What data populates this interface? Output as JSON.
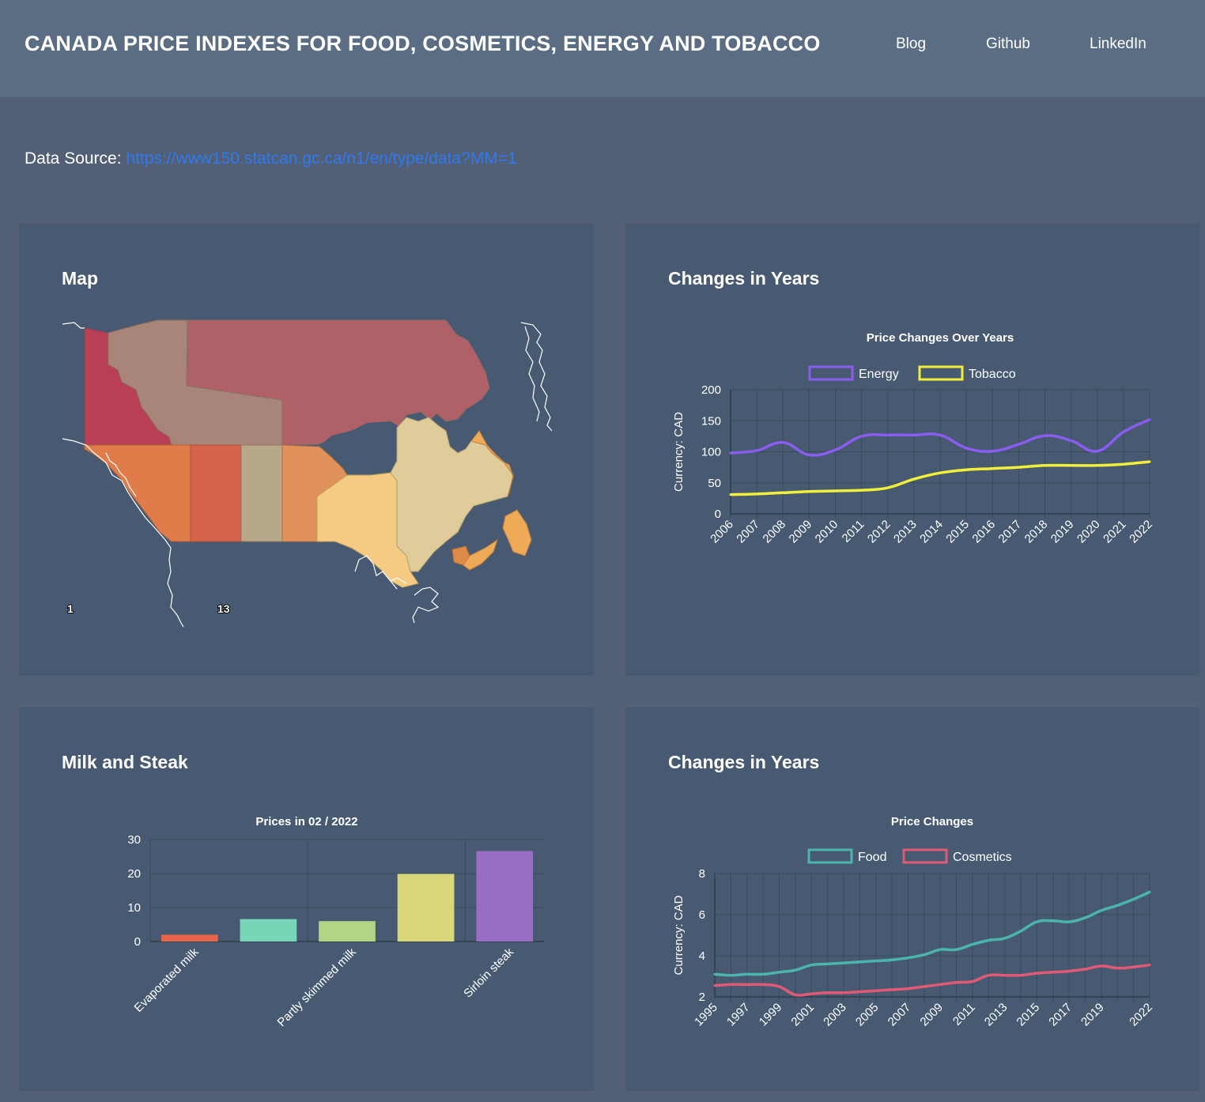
{
  "header": {
    "title": "CANADA PRICE INDEXES FOR FOOD, COSMETICS, ENERGY AND TOBACCO",
    "nav": [
      "Blog",
      "Github",
      "LinkedIn"
    ]
  },
  "source": {
    "label": "Data Source:",
    "url": "https://www150.statcan.gc.ca/n1/en/type/data?MM=1"
  },
  "colors": {
    "page_bg": "#525f75",
    "header_bg": "#5a6d83",
    "panel_bg": "#475a71",
    "link": "#2e7bf0",
    "energy": "#8a5cf0",
    "tobacco": "#f2ef3c",
    "food": "#4bb5ad",
    "cosmetics": "#e05a75"
  },
  "panels": {
    "map": {
      "title": "Map",
      "legend_min": "1",
      "legend_max": "13"
    },
    "energy_tobacco": {
      "title": "Changes in Years"
    },
    "milk_steak": {
      "title": "Milk and Steak"
    },
    "food_cosmetics": {
      "title": "Changes in Years"
    }
  },
  "chart_data": [
    {
      "id": "energy-tobacco",
      "type": "line",
      "title": "Price Changes Over Years",
      "ylabel": "Currency: CAD",
      "xlabel": "",
      "x": [
        2006,
        2007,
        2008,
        2009,
        2010,
        2011,
        2012,
        2013,
        2014,
        2015,
        2016,
        2017,
        2018,
        2019,
        2020,
        2021,
        2022
      ],
      "xticks": [
        "2006",
        "2007",
        "2008",
        "2009",
        "2010",
        "2011",
        "2012",
        "2013",
        "2014",
        "2015",
        "2016",
        "2017",
        "2018",
        "2019",
        "2020",
        "2021",
        "2022"
      ],
      "ylim": [
        0,
        200
      ],
      "yticks": [
        0,
        50,
        100,
        150,
        200
      ],
      "grid": true,
      "legend": "top",
      "series": [
        {
          "name": "Energy",
          "color": "#8a5cf0",
          "values": [
            98,
            102,
            115,
            95,
            103,
            125,
            127,
            127,
            127,
            106,
            101,
            112,
            126,
            118,
            101,
            132,
            152
          ]
        },
        {
          "name": "Tobacco",
          "color": "#f2ef3c",
          "values": [
            31,
            32,
            34,
            36,
            37,
            38,
            42,
            56,
            66,
            71,
            73,
            75,
            78,
            78,
            78,
            80,
            84
          ]
        }
      ]
    },
    {
      "id": "milk-steak",
      "type": "bar",
      "title": "Prices in 02 / 2022",
      "ylim": [
        0,
        30
      ],
      "yticks": [
        0,
        10,
        20,
        30
      ],
      "grid": true,
      "categories": [
        "Evaporated milk",
        "",
        "Partly skimmed milk",
        "",
        "Sirloin steak"
      ],
      "values": [
        2,
        6.6,
        6,
        19.9,
        26.6
      ],
      "colors": [
        "#e8634a",
        "#76d6b7",
        "#b1d485",
        "#d8d87a",
        "#976ec4"
      ]
    },
    {
      "id": "food-cosmetics",
      "type": "line",
      "title": "Price Changes",
      "ylabel": "Currency: CAD",
      "xlabel": "",
      "x": [
        1995,
        1996,
        1997,
        1998,
        1999,
        2000,
        2001,
        2002,
        2003,
        2004,
        2005,
        2006,
        2007,
        2008,
        2009,
        2010,
        2011,
        2012,
        2013,
        2014,
        2015,
        2016,
        2017,
        2018,
        2019,
        2020,
        2021,
        2022
      ],
      "xticks": [
        "1995",
        "1997",
        "1999",
        "2001",
        "2003",
        "2005",
        "2007",
        "2009",
        "2011",
        "2013",
        "2015",
        "2017",
        "2019",
        "2022"
      ],
      "ylim": [
        2,
        8
      ],
      "yticks": [
        2,
        4,
        6,
        8
      ],
      "grid": true,
      "legend": "top",
      "series": [
        {
          "name": "Food",
          "color": "#4bb5ad",
          "values": [
            3.1,
            3.05,
            3.1,
            3.1,
            3.2,
            3.3,
            3.55,
            3.6,
            3.65,
            3.7,
            3.75,
            3.8,
            3.9,
            4.05,
            4.3,
            4.3,
            4.55,
            4.75,
            4.85,
            5.2,
            5.65,
            5.7,
            5.65,
            5.85,
            6.2,
            6.45,
            6.75,
            7.1
          ]
        },
        {
          "name": "Cosmetics",
          "color": "#e05a75",
          "values": [
            2.55,
            2.6,
            2.6,
            2.6,
            2.5,
            2.1,
            2.15,
            2.2,
            2.2,
            2.25,
            2.3,
            2.35,
            2.4,
            2.5,
            2.6,
            2.7,
            2.75,
            3.05,
            3.05,
            3.05,
            3.15,
            3.2,
            3.25,
            3.35,
            3.5,
            3.4,
            3.45,
            3.55
          ]
        }
      ]
    }
  ]
}
